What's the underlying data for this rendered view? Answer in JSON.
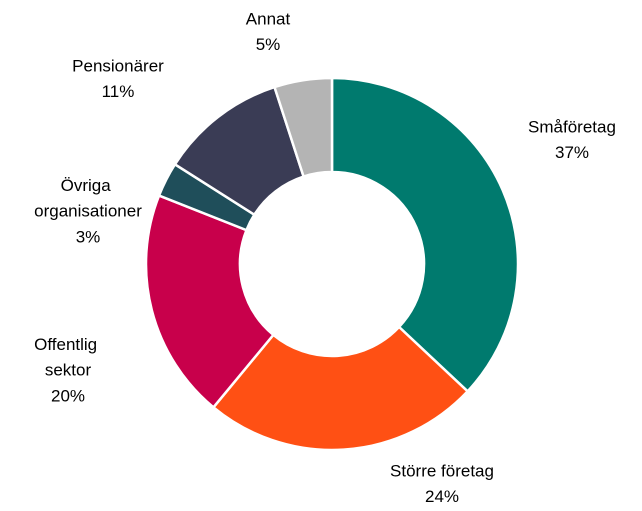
{
  "chart_data": {
    "type": "donut",
    "categories": [
      "Småföretag",
      "Större företag",
      "Offentlig sektor",
      "Övriga organisationer",
      "Pensionärer",
      "Annat"
    ],
    "values": [
      37,
      24,
      20,
      3,
      11,
      5
    ],
    "value_labels": [
      "37%",
      "24%",
      "20%",
      "3%",
      "11%",
      "5%"
    ],
    "colors": [
      "#007A6E",
      "#FF5014",
      "#C8004B",
      "#1F4E5A",
      "#3A3C55",
      "#B4B4B4"
    ]
  }
}
